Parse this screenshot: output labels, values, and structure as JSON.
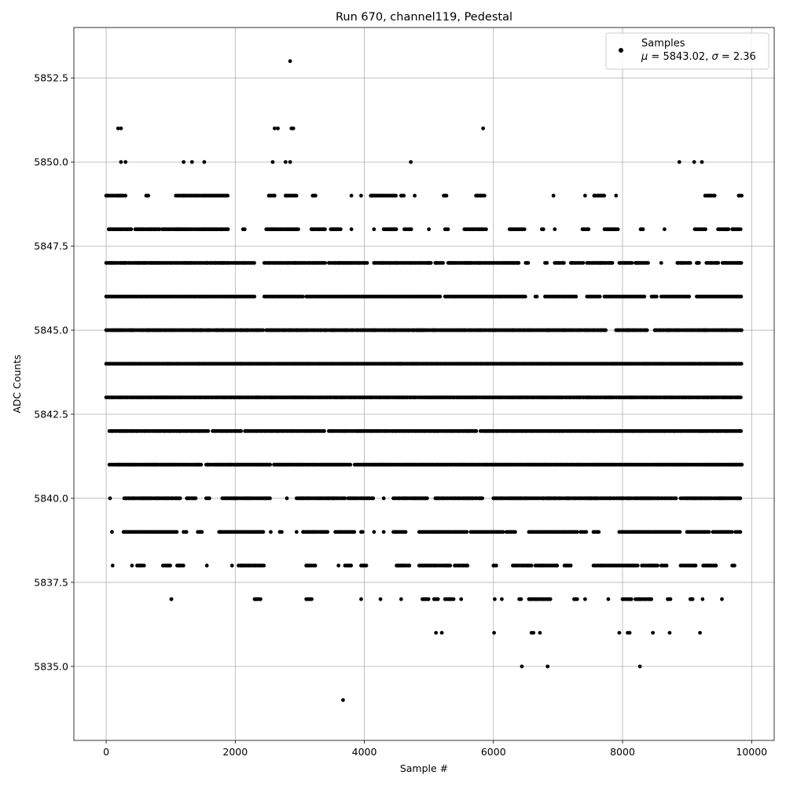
{
  "chart_data": {
    "type": "scatter",
    "title": "Run 670, channel119, Pedestal",
    "xlabel": "Sample #",
    "ylabel": "ADC Counts",
    "xlim": [
      -500,
      10350
    ],
    "ylim": [
      5832.8,
      5854.0
    ],
    "xticks": [
      0,
      2000,
      4000,
      6000,
      8000,
      10000
    ],
    "xtick_labels": [
      "0",
      "2000",
      "4000",
      "6000",
      "8000",
      "10000"
    ],
    "yticks": [
      5835.0,
      5837.5,
      5840.0,
      5842.5,
      5845.0,
      5847.5,
      5850.0,
      5852.5
    ],
    "ytick_labels": [
      "5835.0",
      "5837.5",
      "5840.0",
      "5842.5",
      "5845.0",
      "5847.5",
      "5850.0",
      "5852.5"
    ],
    "grid": true,
    "legend_position": "top-right",
    "marker_color": "#000000",
    "series": [
      {
        "name": "Samples",
        "stats_label_prefix_mu": "μ",
        "stats_label": " = 5843.02, ",
        "stats_label_prefix_sigma": "σ",
        "stats_label_end": " = 2.36",
        "n_samples_approx": 9850,
        "x_range": [
          0,
          9850
        ],
        "outliers": [
          {
            "x": 2850,
            "y": 5853
          },
          {
            "x": 3670,
            "y": 5834
          },
          {
            "x": 6440,
            "y": 5835
          },
          {
            "x": 6840,
            "y": 5835
          },
          {
            "x": 8270,
            "y": 5835
          },
          {
            "x": 5840,
            "y": 5851
          },
          {
            "x": 185,
            "y": 5851
          },
          {
            "x": 230,
            "y": 5851
          },
          {
            "x": 2610,
            "y": 5851
          },
          {
            "x": 2660,
            "y": 5851
          },
          {
            "x": 2870,
            "y": 5851
          },
          {
            "x": 2900,
            "y": 5851
          },
          {
            "x": 230,
            "y": 5850
          },
          {
            "x": 300,
            "y": 5850
          },
          {
            "x": 1200,
            "y": 5850
          },
          {
            "x": 1330,
            "y": 5850
          },
          {
            "x": 1520,
            "y": 5850
          },
          {
            "x": 2580,
            "y": 5850
          },
          {
            "x": 2780,
            "y": 5850
          },
          {
            "x": 2850,
            "y": 5850
          },
          {
            "x": 4720,
            "y": 5850
          },
          {
            "x": 8880,
            "y": 5850
          },
          {
            "x": 9110,
            "y": 5850
          },
          {
            "x": 9230,
            "y": 5850
          },
          {
            "x": 1010,
            "y": 5837
          },
          {
            "x": 5110,
            "y": 5836
          },
          {
            "x": 5200,
            "y": 5836
          },
          {
            "x": 6010,
            "y": 5836
          },
          {
            "x": 6590,
            "y": 5836
          },
          {
            "x": 6620,
            "y": 5836
          },
          {
            "x": 6720,
            "y": 5836
          },
          {
            "x": 7950,
            "y": 5836
          },
          {
            "x": 8080,
            "y": 5836
          },
          {
            "x": 8110,
            "y": 5836
          },
          {
            "x": 8470,
            "y": 5836
          },
          {
            "x": 8730,
            "y": 5836
          },
          {
            "x": 9200,
            "y": 5836
          }
        ],
        "levels": [
          {
            "y": 5849,
            "ranges": [
              [
                0,
                300
              ],
              [
                620,
                660
              ],
              [
                1080,
                1900
              ],
              [
                2520,
                2620
              ],
              [
                2780,
                2950
              ],
              [
                3200,
                3250
              ],
              [
                3800,
                3820
              ],
              [
                3950,
                3970
              ],
              [
                4100,
                4500
              ],
              [
                4570,
                4620
              ],
              [
                4780,
                4800
              ],
              [
                5230,
                5300
              ],
              [
                5730,
                5870
              ],
              [
                6930,
                6950
              ],
              [
                7420,
                7440
              ],
              [
                7560,
                7740
              ],
              [
                7900,
                7920
              ],
              [
                9280,
                9450
              ],
              [
                9800,
                9850
              ]
            ]
          },
          {
            "y": 5848,
            "ranges": [
              [
                40,
                400
              ],
              [
                450,
                850
              ],
              [
                870,
                1100
              ],
              [
                1120,
                1900
              ],
              [
                2120,
                2160
              ],
              [
                2480,
                3000
              ],
              [
                3180,
                3400
              ],
              [
                3480,
                3650
              ],
              [
                3800,
                3820
              ],
              [
                4150,
                4170
              ],
              [
                4300,
                4500
              ],
              [
                4620,
                4740
              ],
              [
                5000,
                5020
              ],
              [
                5250,
                5300
              ],
              [
                5550,
                5900
              ],
              [
                6250,
                6500
              ],
              [
                6750,
                6780
              ],
              [
                6950,
                6970
              ],
              [
                7380,
                7500
              ],
              [
                7720,
                7950
              ],
              [
                8280,
                8320
              ],
              [
                8650,
                8670
              ],
              [
                9120,
                9300
              ],
              [
                9480,
                9650
              ],
              [
                9700,
                9850
              ]
            ]
          },
          {
            "y": 5847,
            "ranges": [
              [
                0,
                2300
              ],
              [
                2450,
                3400
              ],
              [
                3450,
                4050
              ],
              [
                4150,
                5050
              ],
              [
                5100,
                5220
              ],
              [
                5300,
                6400
              ],
              [
                6500,
                6550
              ],
              [
                6800,
                6830
              ],
              [
                6950,
                7100
              ],
              [
                7200,
                7400
              ],
              [
                7450,
                7850
              ],
              [
                7950,
                8150
              ],
              [
                8200,
                8400
              ],
              [
                8600,
                8620
              ],
              [
                8850,
                9050
              ],
              [
                9150,
                9200
              ],
              [
                9300,
                9500
              ],
              [
                9550,
                9850
              ]
            ]
          },
          {
            "y": 5846,
            "ranges": [
              [
                0,
                2300
              ],
              [
                2450,
                3050
              ],
              [
                3100,
                5200
              ],
              [
                5250,
                6500
              ],
              [
                6650,
                6680
              ],
              [
                6800,
                7300
              ],
              [
                7450,
                7650
              ],
              [
                7720,
                8350
              ],
              [
                8450,
                8550
              ],
              [
                8600,
                9050
              ],
              [
                9150,
                9850
              ]
            ]
          },
          {
            "y": 5845,
            "ranges": [
              [
                0,
                2450
              ],
              [
                2480,
                7750
              ],
              [
                7900,
                8400
              ],
              [
                8500,
                9850
              ]
            ]
          },
          {
            "y": 5844,
            "ranges": [
              [
                0,
                9850
              ]
            ]
          },
          {
            "y": 5843,
            "ranges": [
              [
                0,
                9850
              ]
            ]
          },
          {
            "y": 5842,
            "ranges": [
              [
                50,
                1600
              ],
              [
                1650,
                2100
              ],
              [
                2150,
                3400
              ],
              [
                3450,
                5750
              ],
              [
                5800,
                9850
              ]
            ]
          },
          {
            "y": 5841,
            "ranges": [
              [
                50,
                1500
              ],
              [
                1550,
                2550
              ],
              [
                2600,
                3800
              ],
              [
                3850,
                9850
              ]
            ]
          },
          {
            "y": 5840,
            "ranges": [
              [
                60,
                70
              ],
              [
                280,
                1150
              ],
              [
                1250,
                1400
              ],
              [
                1550,
                1600
              ],
              [
                1800,
                2550
              ],
              [
                2800,
                2820
              ],
              [
                2950,
                3700
              ],
              [
                3750,
                4150
              ],
              [
                4300,
                4320
              ],
              [
                4450,
                5000
              ],
              [
                5100,
                5850
              ],
              [
                6000,
                8850
              ],
              [
                8900,
                9850
              ]
            ]
          },
          {
            "y": 5839,
            "ranges": [
              [
                90,
                100
              ],
              [
                270,
                1100
              ],
              [
                1200,
                1250
              ],
              [
                1420,
                1500
              ],
              [
                1750,
                2450
              ],
              [
                2550,
                2560
              ],
              [
                2690,
                2730
              ],
              [
                2950,
                2970
              ],
              [
                3050,
                3450
              ],
              [
                3550,
                3850
              ],
              [
                3950,
                4000
              ],
              [
                4150,
                4170
              ],
              [
                4300,
                4320
              ],
              [
                4450,
                4650
              ],
              [
                4850,
                5600
              ],
              [
                5650,
                6150
              ],
              [
                6200,
                6350
              ],
              [
                6550,
                7300
              ],
              [
                7350,
                7450
              ],
              [
                7550,
                7650
              ],
              [
                7950,
                8900
              ],
              [
                9000,
                9350
              ],
              [
                9400,
                9700
              ],
              [
                9750,
                9850
              ]
            ]
          },
          {
            "y": 5838,
            "ranges": [
              [
                100,
                120
              ],
              [
                400,
                420
              ],
              [
                480,
                600
              ],
              [
                880,
                1000
              ],
              [
                1100,
                1200
              ],
              [
                1560,
                1580
              ],
              [
                1950,
                1970
              ],
              [
                2050,
                2450
              ],
              [
                3100,
                3250
              ],
              [
                3600,
                3620
              ],
              [
                3700,
                3800
              ],
              [
                3950,
                4050
              ],
              [
                4500,
                4700
              ],
              [
                4850,
                5350
              ],
              [
                5400,
                5600
              ],
              [
                6000,
                6050
              ],
              [
                6300,
                6600
              ],
              [
                6650,
                7000
              ],
              [
                7100,
                7200
              ],
              [
                7550,
                8250
              ],
              [
                8300,
                8550
              ],
              [
                8600,
                8700
              ],
              [
                8900,
                9150
              ],
              [
                9250,
                9450
              ],
              [
                9700,
                9750
              ]
            ]
          },
          {
            "y": 5837,
            "ranges": [
              [
                1010,
                1020
              ],
              [
                2300,
                2400
              ],
              [
                3100,
                3200
              ],
              [
                3950,
                3970
              ],
              [
                4250,
                4270
              ],
              [
                4570,
                4590
              ],
              [
                4900,
                5000
              ],
              [
                5080,
                5150
              ],
              [
                5250,
                5400
              ],
              [
                5500,
                5520
              ],
              [
                6020,
                6040
              ],
              [
                6130,
                6150
              ],
              [
                6400,
                6450
              ],
              [
                6550,
                6900
              ],
              [
                7250,
                7300
              ],
              [
                7420,
                7440
              ],
              [
                7780,
                7800
              ],
              [
                8000,
                8150
              ],
              [
                8200,
                8450
              ],
              [
                8700,
                8750
              ],
              [
                9050,
                9100
              ],
              [
                9240,
                9260
              ],
              [
                9540,
                9560
              ]
            ]
          }
        ]
      }
    ]
  }
}
